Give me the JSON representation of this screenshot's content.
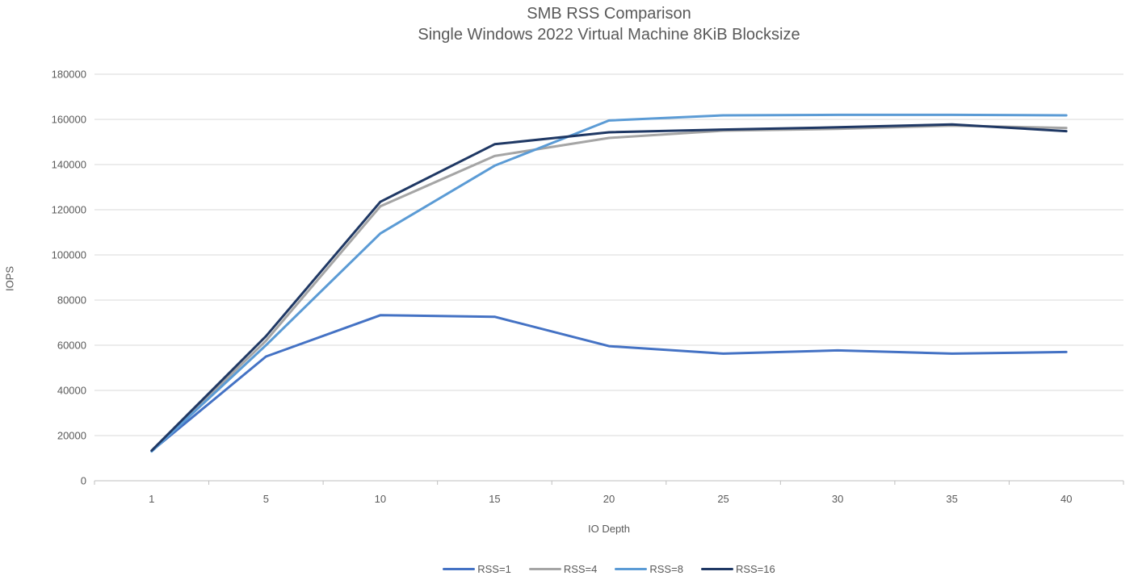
{
  "page": {
    "background": "#ffffff"
  },
  "chart_data": {
    "type": "line",
    "title": "SMB RSS Comparison",
    "subtitle": "Single Windows 2022 Virtual Machine 8KiB Blocksize",
    "xlabel": "IO Depth",
    "ylabel": "IOPS",
    "categories": [
      "1",
      "5",
      "10",
      "15",
      "20",
      "25",
      "30",
      "35",
      "40"
    ],
    "series": [
      {
        "name": "RSS=1",
        "color": "#4472C4",
        "values": [
          13200,
          55000,
          73300,
          72600,
          59600,
          56300,
          57700,
          56300,
          57000
        ]
      },
      {
        "name": "RSS=4",
        "color": "#A5A5A5",
        "values": [
          13200,
          62000,
          121500,
          143800,
          151800,
          155000,
          155800,
          157200,
          156200
        ]
      },
      {
        "name": "RSS=8",
        "color": "#5B9BD5",
        "values": [
          13000,
          60000,
          109500,
          139500,
          159500,
          161800,
          162000,
          162000,
          161800
        ]
      },
      {
        "name": "RSS=16",
        "color": "#1F3864",
        "values": [
          13400,
          64000,
          123500,
          149000,
          154300,
          155500,
          156500,
          157800,
          154800
        ]
      }
    ],
    "ylim": [
      0,
      180000
    ],
    "ytick_step": 20000,
    "ytick_labels": [
      "0",
      "20000",
      "40000",
      "60000",
      "80000",
      "100000",
      "120000",
      "140000",
      "160000",
      "180000"
    ],
    "grid": "horizontal",
    "legend_position": "bottom",
    "legend_labels": [
      "RSS=1",
      "RSS=4",
      "RSS=8",
      "RSS=16"
    ],
    "colors": {
      "grid": "#D9D9D9",
      "axis": "#BFBFBF",
      "text": "#595959"
    }
  }
}
